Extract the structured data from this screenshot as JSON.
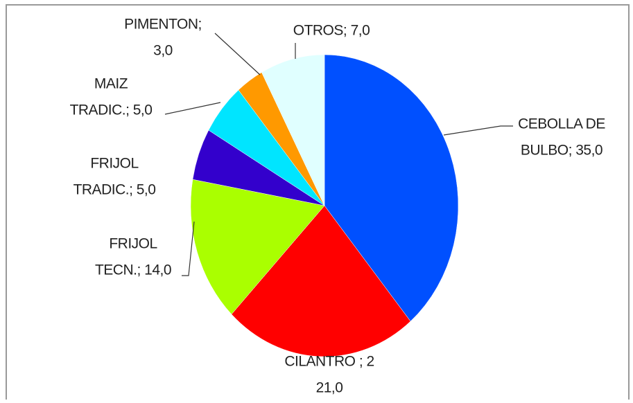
{
  "chart_data": {
    "type": "pie",
    "values": [
      35,
      21,
      14,
      5,
      5,
      3,
      7
    ],
    "value_labels": [
      [
        "CEBOLLA DE",
        "BULBO; 35,0"
      ],
      [
        "CILANTRO ; 2",
        "21,0"
      ],
      [
        "FRIJOL",
        "TECN.; 14,0"
      ],
      [
        "FRIJOL",
        "TRADIC.; 5,0"
      ],
      [
        "MAIZ",
        "TRADIC.; 5,0"
      ],
      [
        "PIMENTON;",
        "3,0"
      ],
      [
        "OTROS; 7,0"
      ]
    ],
    "colors": [
      "#0050ff",
      "#ff0000",
      "#aaff00",
      "#3300cc",
      "#00e5ff",
      "#ff9900",
      "#e0ffff"
    ]
  }
}
